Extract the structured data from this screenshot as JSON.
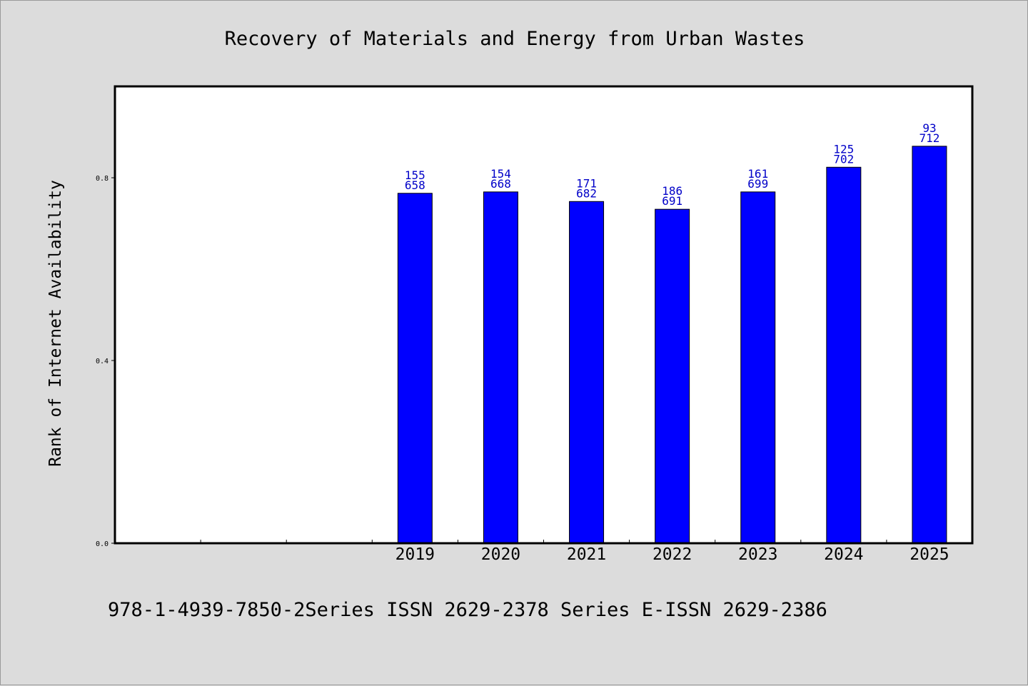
{
  "chart_data": {
    "type": "bar",
    "title": "Recovery of Materials and Energy from Urban Wastes",
    "xlabel": "",
    "ylabel": "Rank of Internet Availability",
    "categories": [
      "",
      "",
      "",
      "2019",
      "2020",
      "2021",
      "2022",
      "2023",
      "2024",
      "2025"
    ],
    "values": [
      null,
      null,
      null,
      0.766,
      0.769,
      0.748,
      0.731,
      0.769,
      0.823,
      0.869
    ],
    "data_labels": [
      null,
      null,
      null,
      [
        "155",
        "658"
      ],
      [
        "154",
        "668"
      ],
      [
        "171",
        "682"
      ],
      [
        "186",
        "691"
      ],
      [
        "161",
        "699"
      ],
      [
        "125",
        "702"
      ],
      [
        "93",
        "712"
      ]
    ],
    "yticks": [
      "0.0",
      "0.4",
      "0.8"
    ],
    "ytick_values": [
      0.0,
      0.4,
      0.8
    ],
    "ylim": [
      0,
      1.0
    ],
    "grid": false,
    "legend": "none",
    "bar_color": "#0000ff",
    "label_color": "#0000c8"
  },
  "footer": "978-1-4939-7850-2Series ISSN 2629-2378 Series E-ISSN 2629-2386",
  "colors": {
    "background": "#dcdcdc",
    "plot_background": "#ffffff"
  }
}
